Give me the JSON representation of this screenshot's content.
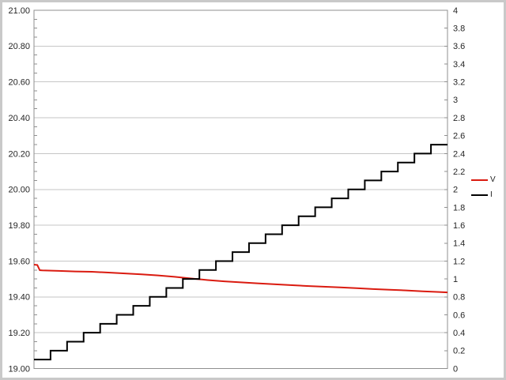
{
  "colors": {
    "background": "#ffffff",
    "outer_border": "#c9c9c9",
    "gridline": "#c6c6c6",
    "axis_line": "#8f8f8f",
    "tick": "#8f8f8f",
    "label_text": "#262626"
  },
  "chart_data": {
    "type": "line",
    "title": "",
    "x_axis": {
      "labels_visible": false,
      "tick_labels": []
    },
    "left_axis": {
      "min": 19.0,
      "max": 21.0,
      "major_step": 0.2,
      "minor_tick_step": 0.05,
      "labels": [
        "21.00",
        "20.80",
        "20.60",
        "20.40",
        "20.20",
        "20.00",
        "19.80",
        "19.60",
        "19.40",
        "19.20",
        "19.00"
      ]
    },
    "right_axis": {
      "min": 0,
      "max": 4,
      "label_step": 0.2,
      "labels": [
        "4",
        "3.8",
        "3.6",
        "3.4",
        "3.2",
        "3",
        "2.8",
        "2.6",
        "2.4",
        "2.2",
        "2",
        "1.8",
        "1.6",
        "1.4",
        "1.2",
        "1",
        "0.8",
        "0.6",
        "0.4",
        "0.2",
        "0"
      ]
    },
    "grid": "horizontal-major",
    "legend_position": "right-middle",
    "series": [
      {
        "name": "V",
        "axis": "left",
        "color": "#da1b10",
        "style": "line",
        "points": [
          [
            0.0,
            19.58
          ],
          [
            0.008,
            19.578
          ],
          [
            0.014,
            19.549
          ],
          [
            0.02,
            19.548
          ],
          [
            0.06,
            19.545
          ],
          [
            0.1,
            19.542
          ],
          [
            0.14,
            19.54
          ],
          [
            0.18,
            19.536
          ],
          [
            0.22,
            19.531
          ],
          [
            0.26,
            19.526
          ],
          [
            0.3,
            19.52
          ],
          [
            0.34,
            19.512
          ],
          [
            0.38,
            19.503
          ],
          [
            0.42,
            19.494
          ],
          [
            0.46,
            19.487
          ],
          [
            0.5,
            19.481
          ],
          [
            0.54,
            19.476
          ],
          [
            0.58,
            19.471
          ],
          [
            0.62,
            19.466
          ],
          [
            0.66,
            19.461
          ],
          [
            0.7,
            19.457
          ],
          [
            0.74,
            19.453
          ],
          [
            0.78,
            19.449
          ],
          [
            0.82,
            19.444
          ],
          [
            0.86,
            19.44
          ],
          [
            0.9,
            19.436
          ],
          [
            0.94,
            19.431
          ],
          [
            0.98,
            19.427
          ],
          [
            1.0,
            19.425
          ]
        ]
      },
      {
        "name": "I",
        "axis": "right",
        "color": "#000000",
        "style": "step",
        "values": [
          0.1,
          0.2,
          0.3,
          0.4,
          0.5,
          0.6,
          0.7,
          0.8,
          0.9,
          1.0,
          1.1,
          1.2,
          1.3,
          1.4,
          1.5,
          1.6,
          1.7,
          1.8,
          1.9,
          2.0,
          2.1,
          2.2,
          2.3,
          2.4,
          2.5
        ]
      }
    ]
  }
}
